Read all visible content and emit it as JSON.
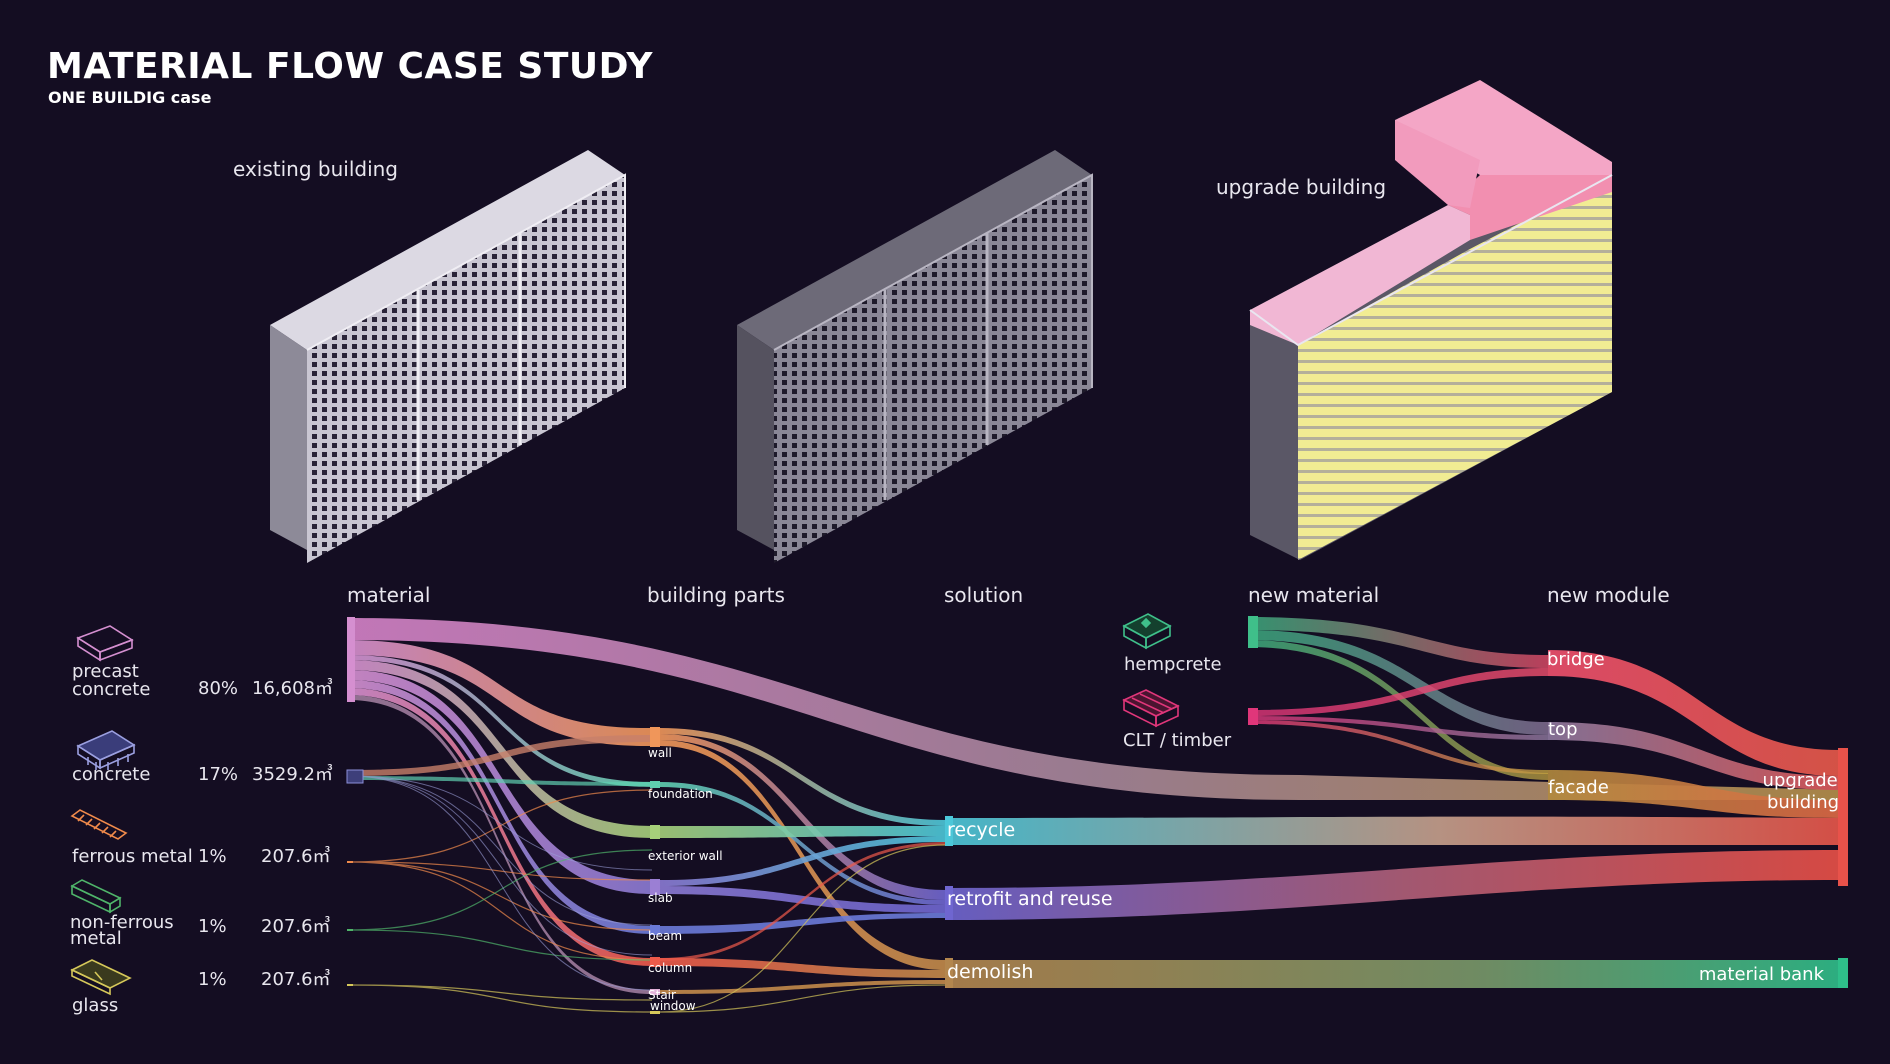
{
  "title": "MATERIAL FLOW CASE STUDY",
  "subtitle": "ONE BUILDIG case",
  "buildings": {
    "existing_label": "existing building",
    "upgrade_label": "upgrade building"
  },
  "stages": {
    "material": "material",
    "building_parts": "building parts",
    "solution": "solution",
    "new_material": "new material",
    "new_module": "new module"
  },
  "materials": [
    {
      "id": "precast",
      "label": [
        "precast",
        "concrete"
      ],
      "percent": "80%",
      "amount": "16,608㎥",
      "color": "#d58fd0",
      "icon": "precast-slab-icon"
    },
    {
      "id": "concrete",
      "label": [
        "concrete"
      ],
      "percent": "17%",
      "amount": "3529.2㎥",
      "color": "#8c8fd8",
      "icon": "concrete-block-icon"
    },
    {
      "id": "ferrous",
      "label": [
        "ferrous metal"
      ],
      "percent": "1%",
      "amount": "207.6㎥",
      "color": "#f08a4b",
      "icon": "rebar-icon"
    },
    {
      "id": "nonferrous",
      "label": [
        "non-ferrous",
        "metal"
      ],
      "percent": "1%",
      "amount": "207.6㎥",
      "color": "#4fb46a",
      "icon": "metal-bar-icon"
    },
    {
      "id": "glass",
      "label": [
        "glass"
      ],
      "percent": "1%",
      "amount": "207.6㎥",
      "color": "#d6c85a",
      "icon": "glass-pane-icon"
    }
  ],
  "building_parts": [
    "wall",
    "foundation",
    "exterior wall",
    "slab",
    "beam",
    "column",
    "Stair",
    "window"
  ],
  "solutions": [
    "recycle",
    "retrofit and reuse",
    "demolish"
  ],
  "new_materials": [
    {
      "label": "hempcrete",
      "icon": "hempcrete-block-icon",
      "color": "#3fbf8a"
    },
    {
      "label": "CLT / timber",
      "icon": "clt-timber-icon",
      "color": "#e0367a"
    }
  ],
  "new_modules": [
    "bridge",
    "top",
    "facade"
  ],
  "outputs": [
    "upgrade building",
    "material bank"
  ],
  "colors": {
    "background": "#140d22",
    "precast": "#d58fd0",
    "wall": "#f0965a",
    "exterior_wall": "#a6d07a",
    "slab": "#9b7fd4",
    "column": "#ee5a4a",
    "recycle": "#4cc7d9",
    "retrofit": "#6f66d0",
    "demolish": "#c28a4a",
    "hempcrete": "#3fbf8a",
    "clt": "#e0367a",
    "bridge": "#f0506e",
    "upgrade": "#e8524a",
    "material_bank": "#2fbf8a",
    "upgrade_roof": "#f4a6c6",
    "upgrade_facade": "#f3ef9a"
  }
}
